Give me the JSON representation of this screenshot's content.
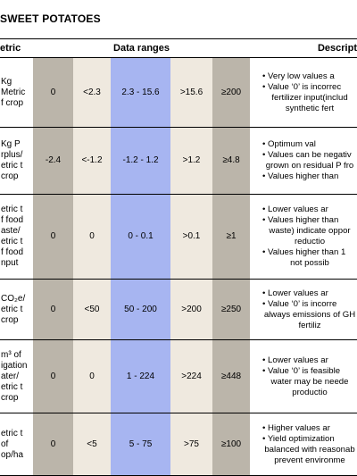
{
  "title": "SWEET POTATOES",
  "headers": {
    "metric": "etric",
    "ranges": "Data ranges",
    "description": "Descript"
  },
  "rows": [
    {
      "metric": [
        "Kg",
        "Metric",
        "f crop"
      ],
      "v1": "0",
      "v2": "<2.3",
      "v3": "2.3 - 15.6",
      "v4": ">15.6",
      "v5": "≥200",
      "desc": [
        "• Very low values a",
        "• Value ‘0’ is incorrec",
        "fertilizer input(includ",
        "synthetic fert"
      ]
    },
    {
      "metric": [
        "Kg P",
        "rplus/",
        "etric t",
        "crop"
      ],
      "v1": "-2.4",
      "v2": "<-1.2",
      "v3": "-1.2 - 1.2",
      "v4": ">1.2",
      "v5": "≥4.8",
      "desc": [
        "• Optimum val",
        "• Values can be negativ",
        "grown on residual P fro",
        "• Values higher than"
      ]
    },
    {
      "metric": [
        "etric t",
        "f food",
        "aste/",
        "etric t",
        "f food",
        "nput"
      ],
      "v1": "0",
      "v2": "0",
      "v3": "0 - 0.1",
      "v4": ">0.1",
      "v5": "≥1",
      "desc": [
        "• Lower values ar",
        "• Values higher than",
        "waste) indicate oppor",
        "reductio",
        "• Values higher than 1",
        "not possib"
      ]
    },
    {
      "metric": [
        "CO₂e/",
        "etric t",
        "crop"
      ],
      "v1": "0",
      "v2": "<50",
      "v3": "50 - 200",
      "v4": ">200",
      "v5": "≥250",
      "desc": [
        "• Lower values ar",
        "• Value ‘0’ is incorre",
        "always emissions of GH",
        "fertiliz"
      ]
    },
    {
      "metric": [
        "m³ of",
        "igation",
        "ater/",
        "etric t",
        "crop"
      ],
      "v1": "0",
      "v2": "0",
      "v3": "1 - 224",
      "v4": ">224",
      "v5": "≥448",
      "desc": [
        "• Lower values ar",
        "• Value ‘0’ is feasible",
        "water may be neede",
        "productio"
      ]
    },
    {
      "metric": [
        "etric t",
        "of",
        "op/ha"
      ],
      "v1": "0",
      "v2": "<5",
      "v3": "5 - 75",
      "v4": ">75",
      "v5": "≥100",
      "desc": [
        "• Higher values ar",
        "• Yield optimization",
        "balanced with reasonab",
        "prevent environme"
      ]
    }
  ]
}
